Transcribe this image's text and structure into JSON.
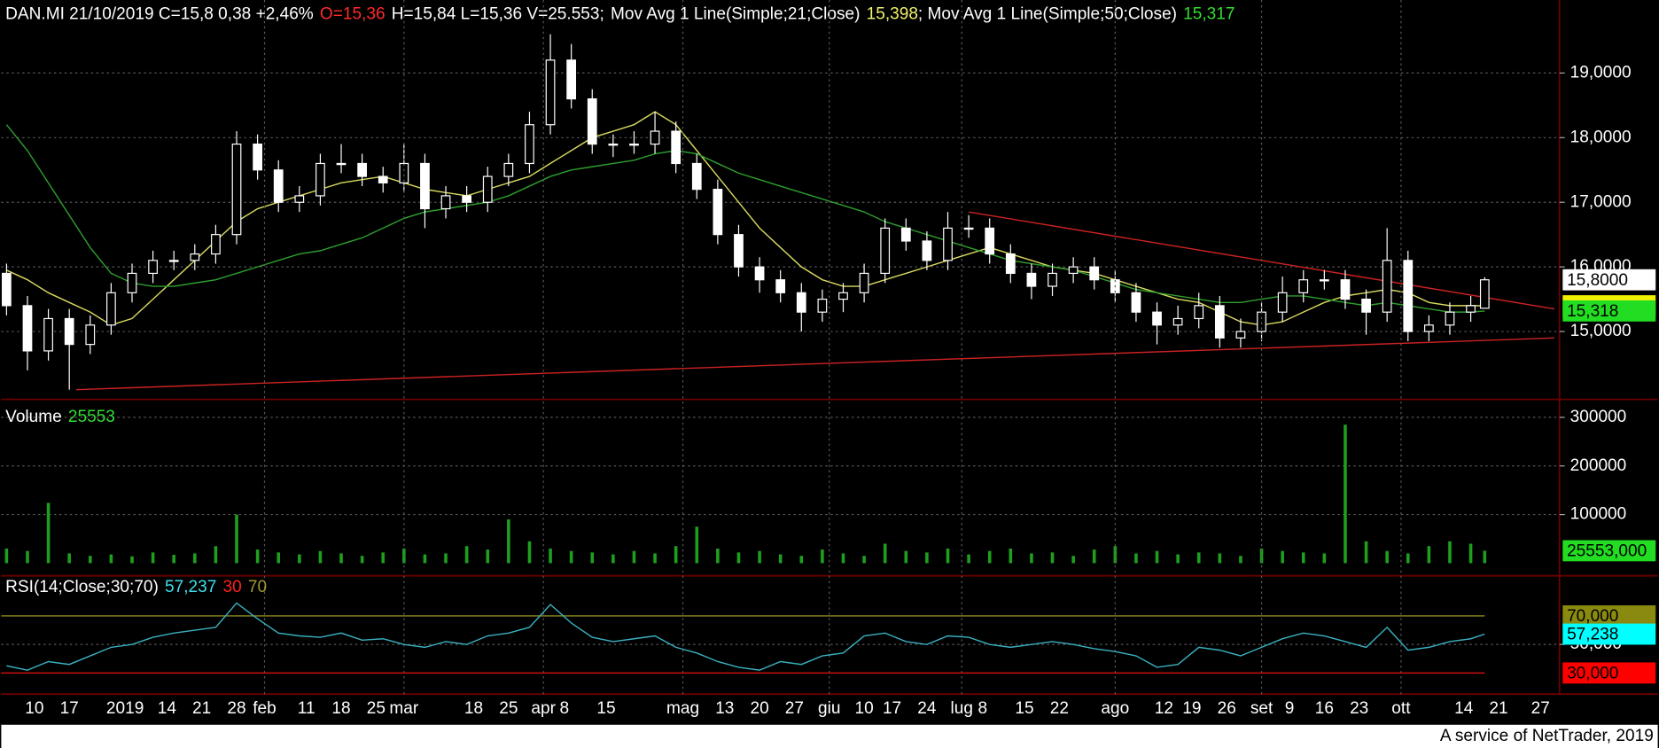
{
  "chart_data": [
    {
      "type": "candlestick",
      "header": [
        {
          "text": "DAN.MI 21/10/2019 C=15,8 0,38 +2,46%",
          "color": "#ffffff"
        },
        {
          "text": "O=15,36",
          "color": "#ff2a2a"
        },
        {
          "text": "H=15,84 L=15,36 V=25.553;",
          "color": "#ffffff"
        },
        {
          "text": "Mov Avg 1 Line(Simple;21;Close)",
          "color": "#ffffff"
        },
        {
          "text": "15,398",
          "color": "#f0f070"
        },
        {
          "text": "; Mov Avg 1 Line(Simple;50;Close)",
          "color": "#ffffff"
        },
        {
          "text": "15,317",
          "color": "#33dd33"
        }
      ],
      "x": [
        0,
        3,
        6,
        9,
        12,
        15,
        18,
        21,
        24,
        27,
        30,
        33,
        36,
        39,
        42,
        45,
        48,
        51,
        54,
        57,
        60,
        63,
        66,
        69,
        72,
        75,
        78,
        81,
        84,
        87,
        90,
        93,
        96,
        99,
        102,
        105,
        108,
        111,
        114,
        117,
        120,
        123,
        126,
        129,
        132,
        135,
        138,
        141,
        144,
        147,
        150,
        153,
        156,
        159,
        162,
        165,
        168,
        171,
        174,
        177,
        180,
        183,
        186,
        189,
        192,
        195,
        198,
        201,
        204,
        207,
        210,
        212
      ],
      "open": [
        15.9,
        15.4,
        14.7,
        15.2,
        14.8,
        15.1,
        15.6,
        15.9,
        16.1,
        16.1,
        16.2,
        16.5,
        17.9,
        17.5,
        17.0,
        17.1,
        17.6,
        17.6,
        17.4,
        17.3,
        17.6,
        16.9,
        17.1,
        17.0,
        17.4,
        17.6,
        18.2,
        19.2,
        18.6,
        17.9,
        17.9,
        17.9,
        18.1,
        17.6,
        17.2,
        16.5,
        16.0,
        15.8,
        15.6,
        15.3,
        15.5,
        15.6,
        15.9,
        16.6,
        16.4,
        16.1,
        16.6,
        16.6,
        16.2,
        15.9,
        15.7,
        15.9,
        16.0,
        15.8,
        15.6,
        15.3,
        15.1,
        15.2,
        15.4,
        14.9,
        15.0,
        15.3,
        15.6,
        15.8,
        15.8,
        15.5,
        15.3,
        16.1,
        15.0,
        15.1,
        15.3,
        15.36
      ],
      "high": [
        16.05,
        15.55,
        15.35,
        15.35,
        15.25,
        15.75,
        16.05,
        16.25,
        16.25,
        16.35,
        16.65,
        18.1,
        18.05,
        17.65,
        17.25,
        17.75,
        17.9,
        17.75,
        17.55,
        17.9,
        17.75,
        17.25,
        17.25,
        17.55,
        17.75,
        18.4,
        19.6,
        19.45,
        18.75,
        18.05,
        18.1,
        18.4,
        18.25,
        17.75,
        17.35,
        16.65,
        16.15,
        15.95,
        15.75,
        15.65,
        15.75,
        16.05,
        16.75,
        16.75,
        16.55,
        16.85,
        16.8,
        16.75,
        16.35,
        16.05,
        16.05,
        16.15,
        16.15,
        15.95,
        15.75,
        15.45,
        15.4,
        15.6,
        15.55,
        15.2,
        15.45,
        15.85,
        15.95,
        15.95,
        15.95,
        15.65,
        16.6,
        16.25,
        15.25,
        15.45,
        15.55,
        15.84
      ],
      "low": [
        15.25,
        14.4,
        14.55,
        14.1,
        14.65,
        14.95,
        15.45,
        15.75,
        15.95,
        15.95,
        16.05,
        16.35,
        17.35,
        16.85,
        16.85,
        16.95,
        17.45,
        17.25,
        17.15,
        17.15,
        16.6,
        16.75,
        16.85,
        16.85,
        17.25,
        17.45,
        18.05,
        18.45,
        17.75,
        17.7,
        17.75,
        17.75,
        17.45,
        17.05,
        16.35,
        15.85,
        15.6,
        15.45,
        15.0,
        15.15,
        15.3,
        15.45,
        15.75,
        16.25,
        15.95,
        15.95,
        16.45,
        16.05,
        15.75,
        15.5,
        15.55,
        15.75,
        15.65,
        15.45,
        15.15,
        14.8,
        14.95,
        15.05,
        14.75,
        14.75,
        14.85,
        15.15,
        15.45,
        15.65,
        15.35,
        14.95,
        15.15,
        14.85,
        14.85,
        14.95,
        15.15,
        15.36
      ],
      "close": [
        15.4,
        14.7,
        15.2,
        14.8,
        15.1,
        15.6,
        15.9,
        16.1,
        16.1,
        16.2,
        16.5,
        17.9,
        17.5,
        17.0,
        17.1,
        17.6,
        17.6,
        17.4,
        17.3,
        17.6,
        16.9,
        17.1,
        17.0,
        17.4,
        17.6,
        18.2,
        19.2,
        18.6,
        17.9,
        17.9,
        17.9,
        18.1,
        17.6,
        17.2,
        16.5,
        16.0,
        15.8,
        15.6,
        15.3,
        15.5,
        15.6,
        15.9,
        16.6,
        16.4,
        16.1,
        16.6,
        16.6,
        16.2,
        15.9,
        15.7,
        15.9,
        16.0,
        15.8,
        15.6,
        15.3,
        15.1,
        15.2,
        15.4,
        14.9,
        15.0,
        15.3,
        15.6,
        15.8,
        15.8,
        15.5,
        15.3,
        16.1,
        15.0,
        15.1,
        15.3,
        15.4,
        15.8
      ],
      "candle_color": "#ffffff",
      "series": [
        {
          "color": "#d8d860",
          "values": [
            15.95,
            15.8,
            15.6,
            15.45,
            15.3,
            15.1,
            15.2,
            15.5,
            15.8,
            16.1,
            16.4,
            16.7,
            16.9,
            17.0,
            17.1,
            17.2,
            17.3,
            17.35,
            17.4,
            17.3,
            17.2,
            17.15,
            17.1,
            17.2,
            17.3,
            17.4,
            17.6,
            17.8,
            18.0,
            18.1,
            18.2,
            18.4,
            18.2,
            17.8,
            17.4,
            17.0,
            16.6,
            16.3,
            16.0,
            15.8,
            15.7,
            15.7,
            15.8,
            15.9,
            16.0,
            16.1,
            16.2,
            16.3,
            16.2,
            16.1,
            16.0,
            15.95,
            15.9,
            15.8,
            15.7,
            15.6,
            15.5,
            15.45,
            15.3,
            15.15,
            15.1,
            15.15,
            15.3,
            15.45,
            15.55,
            15.6,
            15.65,
            15.6,
            15.45,
            15.4,
            15.4,
            15.398
          ]
        },
        {
          "color": "#2e9e2e",
          "values": [
            18.2,
            17.8,
            17.3,
            16.8,
            16.3,
            15.9,
            15.75,
            15.7,
            15.7,
            15.75,
            15.8,
            15.9,
            16.0,
            16.1,
            16.2,
            16.25,
            16.35,
            16.45,
            16.6,
            16.75,
            16.85,
            16.9,
            16.95,
            17.0,
            17.1,
            17.25,
            17.4,
            17.5,
            17.55,
            17.6,
            17.65,
            17.75,
            17.8,
            17.75,
            17.6,
            17.45,
            17.35,
            17.25,
            17.15,
            17.05,
            16.95,
            16.85,
            16.7,
            16.6,
            16.5,
            16.4,
            16.3,
            16.2,
            16.1,
            16.05,
            16.0,
            15.95,
            15.85,
            15.75,
            15.65,
            15.6,
            15.55,
            15.5,
            15.45,
            15.45,
            15.5,
            15.55,
            15.55,
            15.5,
            15.45,
            15.4,
            15.45,
            15.4,
            15.35,
            15.3,
            15.3,
            15.317
          ]
        }
      ],
      "trendlines": [
        {
          "x": [
            10,
            222
          ],
          "values": [
            14.1,
            14.9
          ]
        },
        {
          "x": [
            138,
            222
          ],
          "values": [
            16.85,
            15.35
          ]
        }
      ],
      "trendline_color": "#cc2222",
      "xlim": [
        -0.76,
        222.73
      ],
      "ylim": [
        13.95,
        20.13
      ],
      "yticks": [
        {
          "value": 15,
          "label": "15,0000"
        },
        {
          "value": 16,
          "label": "16,0000"
        },
        {
          "value": 17,
          "label": "17,0000"
        },
        {
          "value": 18,
          "label": "18,0000"
        },
        {
          "value": 19,
          "label": "19,0000"
        }
      ],
      "tags": [
        {
          "value": 15.398,
          "color": "#f0f000"
        },
        {
          "value": 15.8,
          "label": "15,8000",
          "color": "#ffffff"
        },
        {
          "value": 15.318,
          "label": "15,318",
          "color": "#22dd22"
        }
      ],
      "grid": true
    },
    {
      "type": "bar",
      "header": [
        {
          "text": "Volume",
          "color": "#ffffff"
        },
        {
          "text": "25553",
          "color": "#33dd33"
        }
      ],
      "x": [
        0,
        3,
        6,
        9,
        12,
        15,
        18,
        21,
        24,
        27,
        30,
        33,
        36,
        39,
        42,
        45,
        48,
        51,
        54,
        57,
        60,
        63,
        66,
        69,
        72,
        75,
        78,
        81,
        84,
        87,
        90,
        93,
        96,
        99,
        102,
        105,
        108,
        111,
        114,
        117,
        120,
        123,
        126,
        129,
        132,
        135,
        138,
        141,
        144,
        147,
        150,
        153,
        156,
        159,
        162,
        165,
        168,
        171,
        174,
        177,
        180,
        183,
        186,
        189,
        192,
        195,
        198,
        201,
        204,
        207,
        210,
        212
      ],
      "values": [
        30000,
        25000,
        124000,
        20000,
        15000,
        18000,
        14000,
        22000,
        17000,
        20000,
        35000,
        100000,
        28000,
        22000,
        18000,
        25000,
        20000,
        15000,
        22000,
        30000,
        18000,
        20000,
        35000,
        28000,
        90000,
        45000,
        30000,
        25000,
        22000,
        18000,
        25000,
        20000,
        35000,
        75000,
        30000,
        22000,
        25000,
        18000,
        15000,
        28000,
        20000,
        15000,
        40000,
        25000,
        22000,
        30000,
        18000,
        25000,
        30000,
        20000,
        22000,
        15000,
        28000,
        35000,
        20000,
        25000,
        18000,
        22000,
        20000,
        15000,
        30000,
        25000,
        22000,
        20000,
        285000,
        45000,
        25000,
        20000,
        35000,
        45000,
        40000,
        25553
      ],
      "color": "#1ea01e",
      "xlim": [
        -0.76,
        222.73
      ],
      "ylim": [
        -26000,
        337000
      ],
      "yticks": [
        100000,
        200000,
        300000
      ],
      "tags": [
        {
          "value": 25553,
          "label": "25553,000",
          "color": "#22dd22"
        }
      ],
      "grid": true
    },
    {
      "type": "line",
      "header": [
        {
          "text": "RSI(14;Close;30;70)",
          "color": "#ffffff"
        },
        {
          "text": "57,237",
          "color": "#40e0f0"
        },
        {
          "text": "30",
          "color": "#ff2020"
        },
        {
          "text": "70",
          "color": "#a09a30"
        }
      ],
      "x": [
        0,
        3,
        6,
        9,
        12,
        15,
        18,
        21,
        24,
        27,
        30,
        33,
        36,
        39,
        42,
        45,
        48,
        51,
        54,
        57,
        60,
        63,
        66,
        69,
        72,
        75,
        78,
        81,
        84,
        87,
        90,
        93,
        96,
        99,
        102,
        105,
        108,
        111,
        114,
        117,
        120,
        123,
        126,
        129,
        132,
        135,
        138,
        141,
        144,
        147,
        150,
        153,
        156,
        159,
        162,
        165,
        168,
        171,
        174,
        177,
        180,
        183,
        186,
        189,
        192,
        195,
        198,
        201,
        204,
        207,
        210,
        212
      ],
      "values": [
        35,
        32,
        38,
        36,
        42,
        48,
        50,
        55,
        58,
        60,
        62,
        79,
        68,
        58,
        56,
        55,
        58,
        53,
        54,
        50,
        48,
        52,
        50,
        56,
        58,
        62,
        78,
        65,
        55,
        52,
        54,
        56,
        48,
        44,
        38,
        34,
        32,
        38,
        36,
        42,
        44,
        56,
        58,
        52,
        50,
        56,
        55,
        50,
        48,
        50,
        52,
        50,
        47,
        45,
        42,
        34,
        36,
        48,
        46,
        42,
        48,
        54,
        58,
        56,
        52,
        48,
        62,
        46,
        48,
        52,
        54,
        57.237
      ],
      "color": "#3ab0c0",
      "xlim": [
        -0.76,
        222.73
      ],
      "ylim": [
        15.2,
        98.1
      ],
      "levels": [
        {
          "value": 70,
          "color": "#8a8a20"
        },
        {
          "value": 30,
          "color": "#cc1111"
        }
      ],
      "yticks": [
        {
          "value": 50,
          "label": "50,000"
        }
      ],
      "tags": [
        {
          "value": 70,
          "label": "70,000",
          "color": "#8a8a10"
        },
        {
          "value": 57.238,
          "label": "57,238",
          "color": "#00ffff"
        },
        {
          "value": 30,
          "label": "30,000",
          "color": "#ff0000"
        }
      ],
      "xticks": [
        {
          "value": 4,
          "label": "10"
        },
        {
          "value": 9,
          "label": "17"
        },
        {
          "value": 17,
          "label": "2019"
        },
        {
          "value": 23,
          "label": "14"
        },
        {
          "value": 28,
          "label": "21"
        },
        {
          "value": 33,
          "label": "28"
        },
        {
          "value": 37,
          "label": "feb"
        },
        {
          "value": 43,
          "label": "11"
        },
        {
          "value": 48,
          "label": "18"
        },
        {
          "value": 53,
          "label": "25"
        },
        {
          "value": 57,
          "label": "mar"
        },
        {
          "value": 67,
          "label": "18"
        },
        {
          "value": 72,
          "label": "25"
        },
        {
          "value": 77,
          "label": "apr"
        },
        {
          "value": 80,
          "label": "8"
        },
        {
          "value": 86,
          "label": "15"
        },
        {
          "value": 97,
          "label": "mag"
        },
        {
          "value": 103,
          "label": "13"
        },
        {
          "value": 108,
          "label": "20"
        },
        {
          "value": 113,
          "label": "27"
        },
        {
          "value": 118,
          "label": "giu"
        },
        {
          "value": 123,
          "label": "10"
        },
        {
          "value": 127,
          "label": "17"
        },
        {
          "value": 132,
          "label": "24"
        },
        {
          "value": 137,
          "label": "lug"
        },
        {
          "value": 140,
          "label": "8"
        },
        {
          "value": 146,
          "label": "15"
        },
        {
          "value": 151,
          "label": "22"
        },
        {
          "value": 159,
          "label": "ago"
        },
        {
          "value": 166,
          "label": "12"
        },
        {
          "value": 170,
          "label": "19"
        },
        {
          "value": 175,
          "label": "26"
        },
        {
          "value": 180,
          "label": "set"
        },
        {
          "value": 184,
          "label": "9"
        },
        {
          "value": 189,
          "label": "16"
        },
        {
          "value": 194,
          "label": "23"
        },
        {
          "value": 200,
          "label": "ott"
        },
        {
          "value": 209,
          "label": "14"
        },
        {
          "value": 214,
          "label": "21"
        },
        {
          "value": 220,
          "label": "27"
        }
      ],
      "grid": true
    }
  ],
  "footer": "A service of NetTrader, 2019"
}
